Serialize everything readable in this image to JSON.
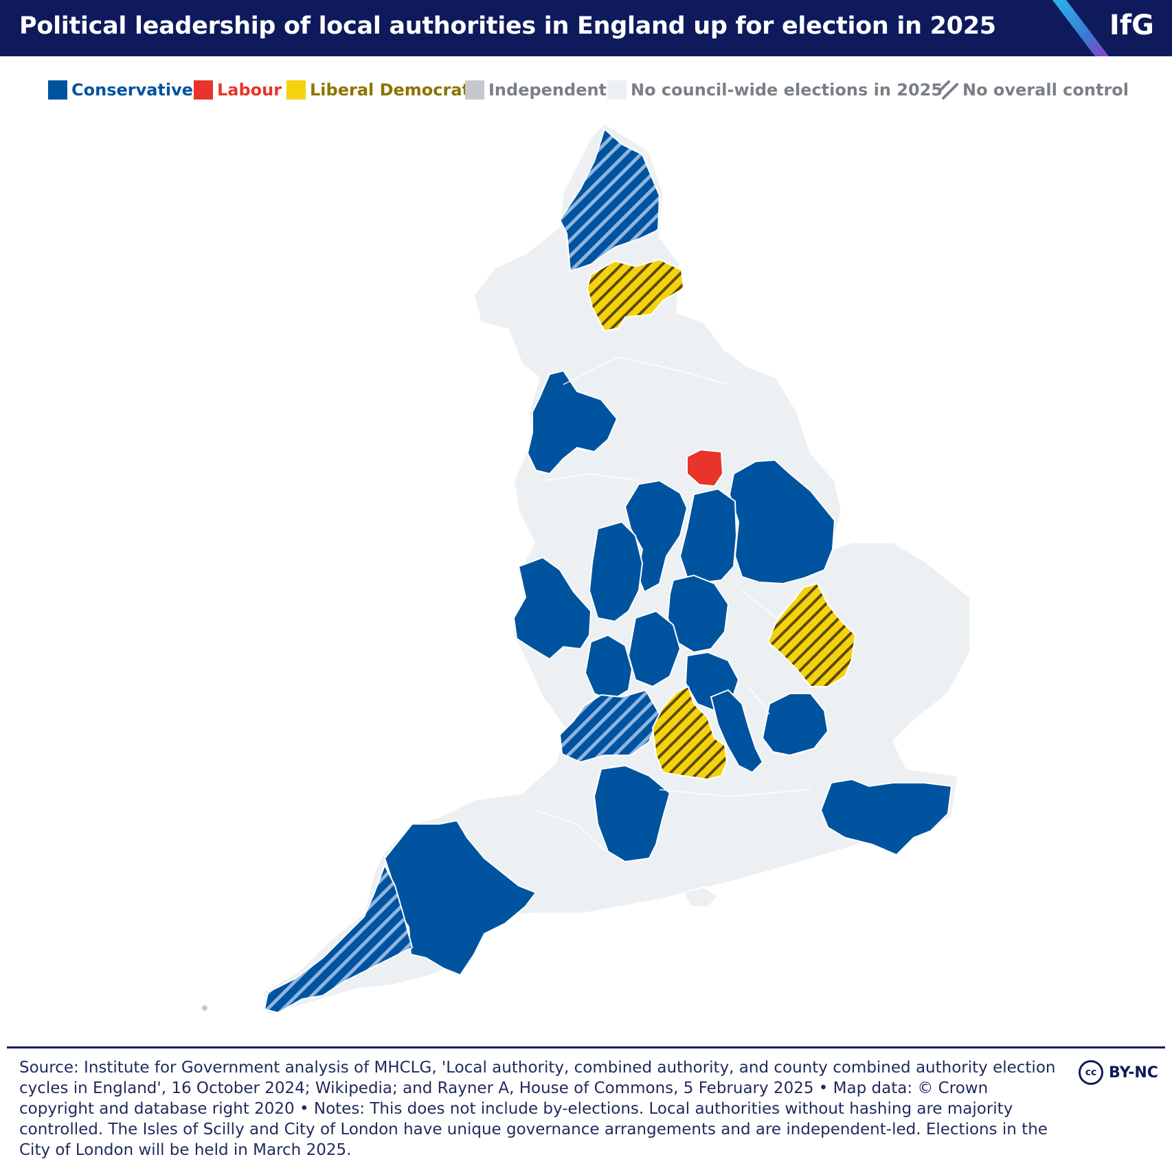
{
  "header": {
    "title": "Political leadership of local authorities in England up for election in 2025",
    "logo": "IfG"
  },
  "colors": {
    "conservative": "#00539f",
    "labour": "#e8342a",
    "libdem": "#f5d20f",
    "independent": "#c5c9cf",
    "no_election": "#edf0f3",
    "header_bg": "#0e1a5c"
  },
  "legend": {
    "conservative": "Conservative",
    "labour": "Labour",
    "libdem": "Liberal Democrat",
    "independent": "Independent",
    "no_election": "No council-wide elections in 2025",
    "noc": "No overall control"
  },
  "footer": {
    "source": "Source: Institute for Government analysis of MHCLG, 'Local authority, combined authority, and county combined authority election cycles in England', 16 October 2024; Wikipedia; and Rayner A, House of Commons, 5 February 2025 • Map data: © Crown copyright and database right 2020  • Notes: This does not include by-elections. Local authorities without hashing are majority controlled. The Isles of Scilly and City of London have unique governance arrangements and are independent-led. Elections in the City of London will be held in March 2025.",
    "cc_badge": "cc",
    "license": "BY-NC"
  }
}
